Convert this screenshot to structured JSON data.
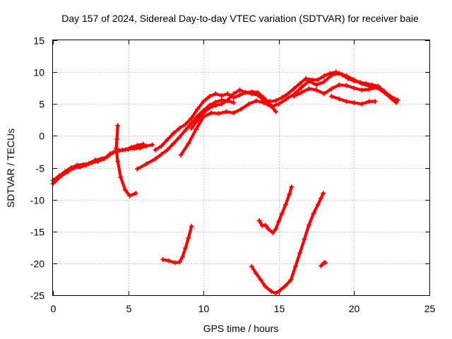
{
  "chart_data": {
    "type": "scatter",
    "title": "Day 157 of 2024, Sidereal Day-to-day VTEC variation (SDTVAR) for receiver baie",
    "xlabel": "GPS time / hours",
    "ylabel": "SDTVAR / TECUs",
    "xlim": [
      0,
      25
    ],
    "ylim": [
      -25,
      15
    ],
    "xticks": [
      0,
      5,
      10,
      15,
      20,
      25
    ],
    "yticks": [
      -25,
      -20,
      -15,
      -10,
      -5,
      0,
      5,
      10,
      15
    ],
    "grid": true,
    "marker": "plus",
    "color": "#ff0000",
    "series": [
      {
        "name": "arc-1",
        "points": [
          [
            0.0,
            -7.5
          ],
          [
            0.3,
            -6.8
          ],
          [
            0.6,
            -6.2
          ],
          [
            1.0,
            -5.6
          ],
          [
            1.4,
            -5.0
          ],
          [
            1.8,
            -4.9
          ],
          [
            2.2,
            -4.6
          ],
          [
            2.6,
            -4.2
          ],
          [
            3.0,
            -4.0
          ],
          [
            3.4,
            -3.6
          ],
          [
            3.8,
            -2.8
          ],
          [
            4.2,
            -2.4
          ],
          [
            4.6,
            -2.2
          ],
          [
            5.0,
            -2.1
          ],
          [
            5.4,
            -2.0
          ],
          [
            5.8,
            -1.9
          ],
          [
            6.2,
            -1.6
          ],
          [
            6.6,
            -1.4
          ]
        ]
      },
      {
        "name": "arc-2",
        "points": [
          [
            0.0,
            -7.0
          ],
          [
            0.4,
            -6.3
          ],
          [
            0.8,
            -5.6
          ],
          [
            1.2,
            -5.0
          ],
          [
            1.6,
            -4.6
          ],
          [
            2.0,
            -4.5
          ],
          [
            2.4,
            -4.3
          ],
          [
            2.8,
            -3.8
          ],
          [
            3.2,
            -3.6
          ],
          [
            3.6,
            -3.3
          ],
          [
            4.0,
            -2.6
          ],
          [
            4.4,
            -2.3
          ],
          [
            4.8,
            -2.2
          ],
          [
            5.2,
            -1.8
          ],
          [
            5.6,
            -1.5
          ],
          [
            6.0,
            -1.3
          ]
        ]
      },
      {
        "name": "arc-3",
        "points": [
          [
            4.3,
            1.6
          ],
          [
            4.25,
            -0.5
          ],
          [
            4.2,
            -2.0
          ],
          [
            4.3,
            -4.0
          ],
          [
            4.5,
            -6.5
          ],
          [
            4.8,
            -8.5
          ],
          [
            5.1,
            -9.4
          ],
          [
            5.5,
            -9.0
          ]
        ]
      },
      {
        "name": "arc-4",
        "points": [
          [
            5.6,
            -5.2
          ],
          [
            6.2,
            -4.4
          ],
          [
            6.8,
            -3.6
          ],
          [
            7.2,
            -2.9
          ],
          [
            7.6,
            -2.2
          ],
          [
            8.0,
            -1.2
          ],
          [
            8.4,
            -0.2
          ],
          [
            8.8,
            0.9
          ],
          [
            9.2,
            2.0
          ],
          [
            9.6,
            3.1
          ],
          [
            10.0,
            4.0
          ],
          [
            10.4,
            4.8
          ],
          [
            10.8,
            5.3
          ],
          [
            11.2,
            5.6
          ],
          [
            11.6,
            5.5
          ],
          [
            12.0,
            5.2
          ]
        ]
      },
      {
        "name": "arc-5",
        "points": [
          [
            6.8,
            -2.2
          ],
          [
            7.2,
            -1.6
          ],
          [
            7.6,
            -0.6
          ],
          [
            8.0,
            0.4
          ],
          [
            8.4,
            1.2
          ],
          [
            8.8,
            1.8
          ],
          [
            9.2,
            2.8
          ],
          [
            9.6,
            4.2
          ],
          [
            10.0,
            5.4
          ],
          [
            10.4,
            6.2
          ],
          [
            10.8,
            6.6
          ],
          [
            11.2,
            6.3
          ],
          [
            11.6,
            6.6
          ],
          [
            12.0,
            6.0
          ],
          [
            12.4,
            6.4
          ],
          [
            12.8,
            6.8
          ],
          [
            13.2,
            6.9
          ],
          [
            13.6,
            6.8
          ],
          [
            14.0,
            6.0
          ],
          [
            14.4,
            5.0
          ],
          [
            14.8,
            3.8
          ]
        ]
      },
      {
        "name": "arc-6",
        "points": [
          [
            8.5,
            -3.0
          ],
          [
            9.0,
            -1.2
          ],
          [
            9.5,
            1.0
          ],
          [
            10.0,
            3.0
          ],
          [
            10.5,
            3.6
          ],
          [
            11.0,
            3.5
          ],
          [
            11.5,
            3.8
          ],
          [
            12.0,
            3.6
          ],
          [
            12.5,
            4.2
          ],
          [
            13.0,
            5.0
          ],
          [
            13.5,
            5.5
          ],
          [
            14.0,
            5.2
          ],
          [
            14.5,
            4.6
          ],
          [
            15.0,
            5.0
          ],
          [
            15.5,
            5.8
          ],
          [
            16.0,
            6.5
          ],
          [
            16.5,
            7.6
          ],
          [
            17.0,
            8.6
          ],
          [
            17.5,
            8.0
          ],
          [
            18.0,
            8.5
          ],
          [
            18.5,
            9.5
          ],
          [
            19.0,
            9.8
          ],
          [
            19.5,
            9.4
          ],
          [
            20.0,
            8.8
          ],
          [
            20.5,
            8.2
          ],
          [
            21.0,
            7.8
          ],
          [
            21.5,
            7.6
          ],
          [
            22.0,
            6.8
          ],
          [
            22.5,
            5.8
          ],
          [
            22.8,
            5.2
          ]
        ]
      },
      {
        "name": "arc-7",
        "points": [
          [
            9.2,
            1.2
          ],
          [
            9.6,
            2.4
          ],
          [
            10.0,
            3.6
          ],
          [
            10.4,
            4.4
          ],
          [
            10.8,
            4.8
          ],
          [
            11.2,
            5.0
          ],
          [
            11.6,
            5.6
          ],
          [
            12.0,
            6.6
          ],
          [
            12.4,
            7.2
          ],
          [
            12.8,
            6.8
          ],
          [
            13.2,
            6.6
          ],
          [
            13.6,
            6.4
          ],
          [
            14.0,
            5.6
          ],
          [
            14.4,
            5.4
          ],
          [
            14.8,
            5.5
          ],
          [
            15.2,
            6.0
          ],
          [
            15.6,
            6.6
          ],
          [
            16.0,
            7.4
          ],
          [
            16.4,
            8.2
          ],
          [
            16.8,
            9.0
          ],
          [
            17.2,
            8.8
          ],
          [
            17.6,
            8.8
          ],
          [
            18.0,
            9.4
          ],
          [
            18.4,
            9.8
          ],
          [
            18.8,
            10.0
          ],
          [
            19.2,
            9.6
          ],
          [
            19.6,
            9.0
          ],
          [
            20.0,
            8.6
          ],
          [
            20.4,
            8.4
          ],
          [
            20.8,
            8.2
          ],
          [
            21.2,
            8.0
          ],
          [
            21.6,
            7.8
          ],
          [
            22.0,
            7.0
          ],
          [
            22.4,
            6.2
          ],
          [
            22.9,
            5.6
          ]
        ]
      },
      {
        "name": "arc-8",
        "points": [
          [
            16.0,
            6.2
          ],
          [
            16.5,
            6.8
          ],
          [
            17.0,
            7.4
          ],
          [
            17.5,
            7.2
          ],
          [
            18.0,
            6.6
          ],
          [
            18.5,
            7.4
          ],
          [
            19.0,
            8.0
          ],
          [
            19.5,
            7.9
          ],
          [
            20.0,
            7.5
          ],
          [
            20.5,
            7.2
          ],
          [
            21.0,
            7.3
          ],
          [
            21.5,
            7.6
          ],
          [
            22.0,
            7.0
          ],
          [
            22.5,
            6.0
          ]
        ]
      },
      {
        "name": "arc-9",
        "points": [
          [
            18.5,
            6.2
          ],
          [
            19.0,
            5.8
          ],
          [
            19.5,
            5.4
          ],
          [
            20.0,
            5.2
          ],
          [
            20.5,
            5.0
          ],
          [
            21.0,
            5.4
          ],
          [
            21.4,
            5.4
          ]
        ]
      },
      {
        "name": "arc-10",
        "points": [
          [
            7.3,
            -19.4
          ],
          [
            7.7,
            -19.6
          ],
          [
            8.1,
            -19.9
          ],
          [
            8.4,
            -19.8
          ],
          [
            8.6,
            -19.0
          ],
          [
            8.8,
            -17.6
          ],
          [
            9.0,
            -16.0
          ],
          [
            9.2,
            -14.2
          ]
        ]
      },
      {
        "name": "arc-11",
        "points": [
          [
            13.2,
            -20.5
          ],
          [
            13.5,
            -21.6
          ],
          [
            13.8,
            -22.6
          ],
          [
            14.1,
            -23.6
          ],
          [
            14.5,
            -24.4
          ],
          [
            14.8,
            -24.7
          ],
          [
            15.1,
            -24.2
          ],
          [
            15.4,
            -23.6
          ],
          [
            15.8,
            -22.6
          ],
          [
            16.1,
            -20.5
          ],
          [
            16.4,
            -18.4
          ],
          [
            16.7,
            -16.2
          ],
          [
            17.0,
            -14.0
          ],
          [
            17.3,
            -12.2
          ],
          [
            17.6,
            -10.8
          ],
          [
            17.8,
            -9.8
          ],
          [
            17.95,
            -9.0
          ]
        ]
      },
      {
        "name": "arc-12",
        "points": [
          [
            13.7,
            -13.3
          ],
          [
            13.9,
            -14.1
          ],
          [
            14.1,
            -14.0
          ],
          [
            14.3,
            -14.6
          ],
          [
            14.6,
            -15.2
          ],
          [
            14.8,
            -14.6
          ],
          [
            15.0,
            -13.4
          ],
          [
            15.2,
            -12.2
          ],
          [
            15.45,
            -10.8
          ],
          [
            15.7,
            -9.2
          ],
          [
            15.85,
            -8.0
          ]
        ]
      },
      {
        "name": "arc-13",
        "points": [
          [
            17.8,
            -20.4
          ],
          [
            18.0,
            -19.9
          ],
          [
            18.1,
            -19.9
          ]
        ]
      }
    ]
  }
}
